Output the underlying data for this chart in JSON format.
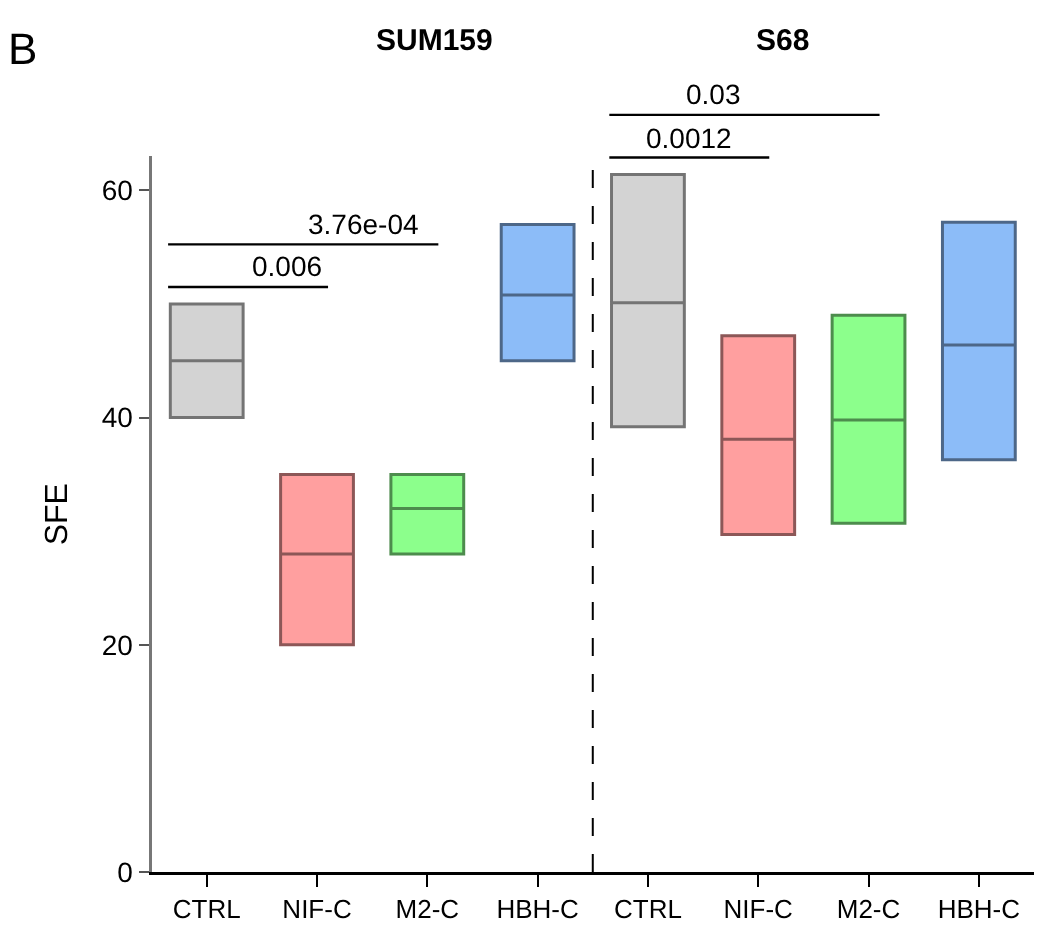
{
  "chart_data": [
    {
      "type": "box",
      "title": "SUM159",
      "ylabel": "SFE",
      "categories": [
        "CTRL",
        "NIF-C",
        "M2-C",
        "HBH-C"
      ],
      "boxes": [
        {
          "low": 40,
          "q1": 40,
          "median": 45,
          "q3": 50,
          "high": 50
        },
        {
          "low": 20,
          "q1": 20,
          "median": 28,
          "q3": 35,
          "high": 35
        },
        {
          "low": 28,
          "q1": 28,
          "median": 32,
          "q3": 35,
          "high": 35
        },
        {
          "low": 45,
          "q1": 45,
          "median": 50.8,
          "q3": 57,
          "high": 57
        }
      ],
      "colors": [
        "#d3d3d3",
        "#ff9f9f",
        "#8cff8c",
        "#8cbcf8"
      ],
      "ylim": [
        0,
        63
      ],
      "yticks": [
        0,
        20,
        40,
        60
      ],
      "grid": false,
      "annotations": [
        "B",
        "0.006",
        "3.76e-04"
      ]
    },
    {
      "type": "box",
      "title": "S68",
      "categories": [
        "CTRL",
        "NIF-C",
        "M2-C",
        "HBH-C"
      ],
      "boxes": [
        {
          "low": 39.2,
          "q1": 39.2,
          "median": 50.1,
          "q3": 61.4,
          "high": 61.4
        },
        {
          "low": 29.7,
          "q1": 29.7,
          "median": 38.1,
          "q3": 47.2,
          "high": 47.2
        },
        {
          "low": 30.7,
          "q1": 30.7,
          "median": 39.8,
          "q3": 49,
          "high": 49
        },
        {
          "low": 36.3,
          "q1": 36.3,
          "median": 46.4,
          "q3": 57.2,
          "high": 57.2
        }
      ],
      "colors": [
        "#d3d3d3",
        "#ff9f9f",
        "#8cff8c",
        "#8cbcf8"
      ],
      "ylim": [
        0,
        63
      ],
      "yticks": [
        0,
        20,
        40,
        60
      ],
      "grid": false,
      "tick_labels": "x",
      "annotations": [
        "0.0012",
        "0.03"
      ]
    }
  ]
}
